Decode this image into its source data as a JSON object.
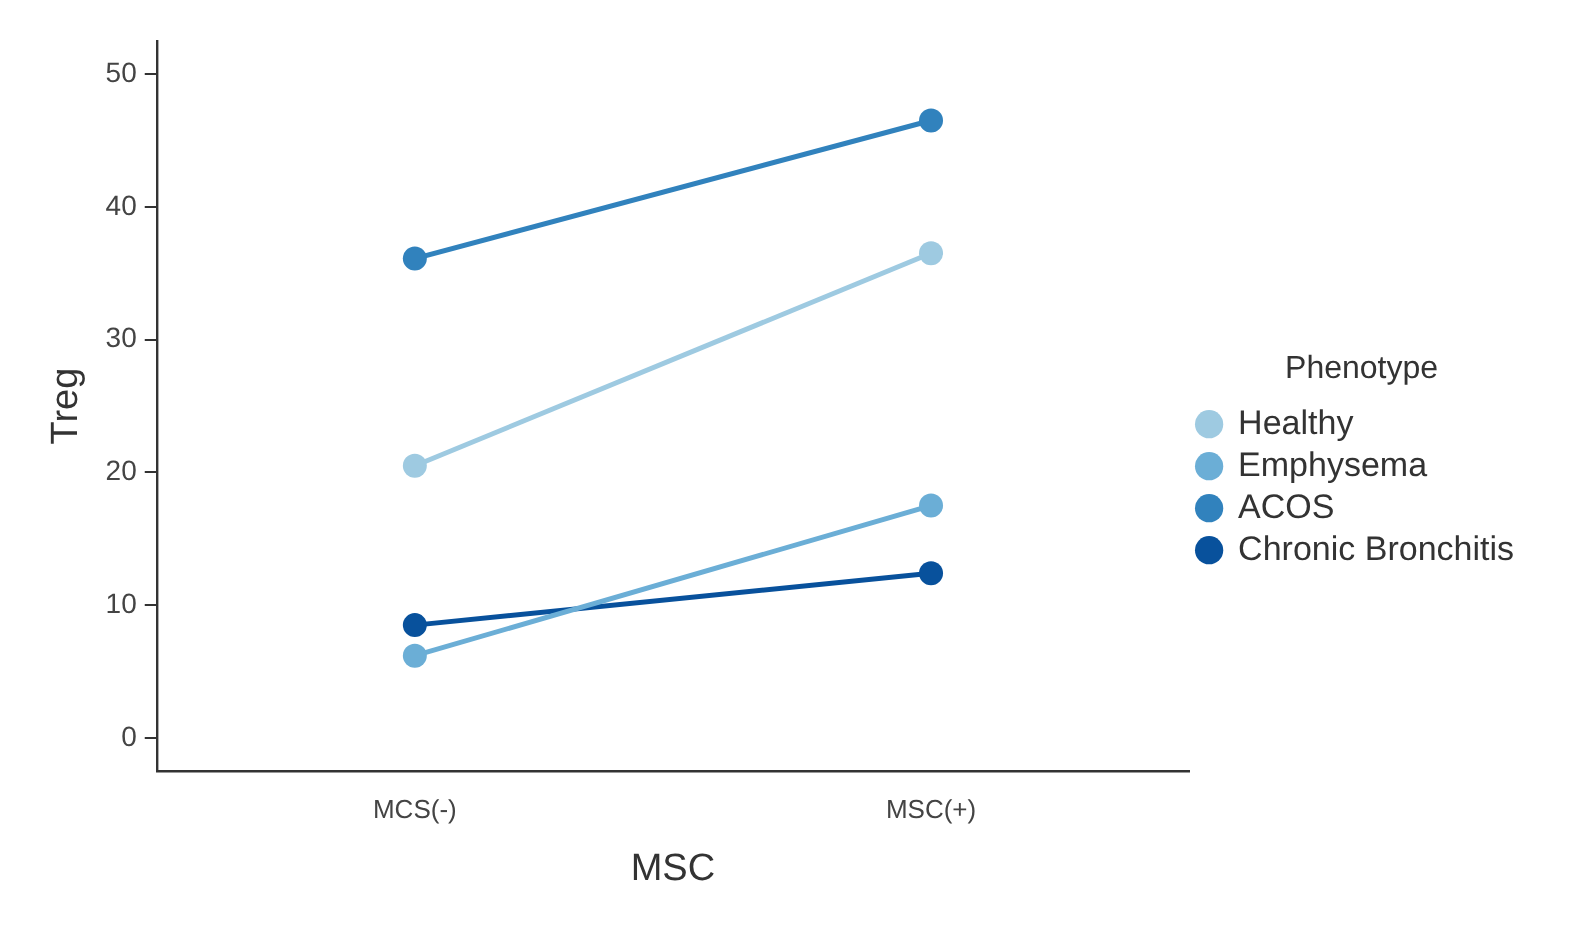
{
  "chart_data": {
    "type": "line",
    "xlabel": "MSC",
    "ylabel": "Treg",
    "legend_title": "Phenotype",
    "categories": [
      "MCS(-)",
      "MSC(+)"
    ],
    "series": [
      {
        "name": "Healthy",
        "color": "#9ecae1",
        "values": [
          20.5,
          36.5
        ]
      },
      {
        "name": "Emphysema",
        "color": "#6baed6",
        "values": [
          6.2,
          17.5
        ]
      },
      {
        "name": "ACOS",
        "color": "#3182bd",
        "values": [
          36.1,
          46.5
        ]
      },
      {
        "name": "Chronic Bronchitis",
        "color": "#08519c",
        "values": [
          8.5,
          12.4
        ]
      }
    ],
    "ylim": [
      -2.5,
      52.5
    ],
    "yticks": [
      0,
      10,
      20,
      30,
      40,
      50
    ],
    "grid": false,
    "legend": "right",
    "marker": "circle",
    "line_style": "solid"
  }
}
